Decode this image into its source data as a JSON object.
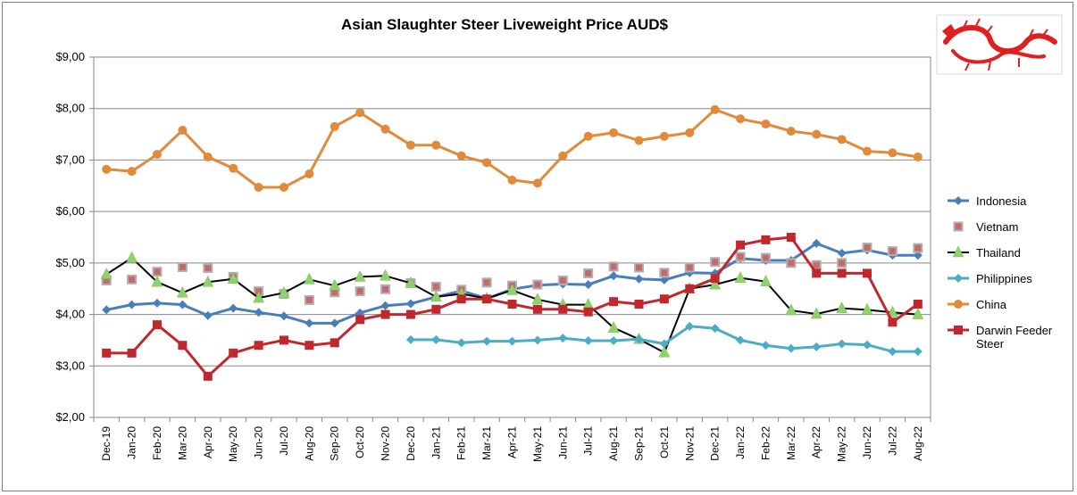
{
  "chart_data": {
    "type": "line",
    "title": "Asian Slaughter Steer Liveweight Price AUD$",
    "ylim": [
      2,
      9
    ],
    "yticks": [
      "$2,00",
      "$3,00",
      "$4,00",
      "$5,00",
      "$6,00",
      "$7,00",
      "$8,00",
      "$9,00"
    ],
    "grid": true,
    "legend_position": "right",
    "categories": [
      "Dec-19",
      "Jan-20",
      "Feb-20",
      "Mar-20",
      "Apr-20",
      "May-20",
      "Jun-20",
      "Jul-20",
      "Aug-20",
      "Sep-20",
      "Oct-20",
      "Nov-20",
      "Dec-20",
      "Jan-21",
      "Feb-21",
      "Mar-21",
      "Apr-21",
      "May-21",
      "Jun-21",
      "Jul-21",
      "Aug-21",
      "Sep-21",
      "Oct-21",
      "Nov-21",
      "Dec-21",
      "Jan-22",
      "Feb-22",
      "Mar-22",
      "Apr-22",
      "May-22",
      "Jun-22",
      "Jul-22",
      "Aug-22"
    ],
    "series": [
      {
        "name": "Indonesia",
        "color": "#4a7ebb",
        "marker": "diamond",
        "line": true,
        "values": [
          4.09,
          4.19,
          4.22,
          4.19,
          3.98,
          4.12,
          4.04,
          3.97,
          3.83,
          3.83,
          4.03,
          4.17,
          4.21,
          4.34,
          4.46,
          4.31,
          4.49,
          4.57,
          4.59,
          4.58,
          4.75,
          4.69,
          4.67,
          4.81,
          4.8,
          5.09,
          5.05,
          5.05,
          5.38,
          5.19,
          5.25,
          5.15,
          5.15
        ]
      },
      {
        "name": "Vietnam",
        "color": "#c0504d",
        "marker": "square-gray",
        "line": false,
        "values": [
          4.66,
          4.68,
          4.83,
          4.92,
          4.9,
          4.73,
          4.45,
          4.4,
          4.28,
          4.43,
          4.45,
          4.49,
          4.61,
          4.54,
          4.48,
          4.62,
          4.56,
          4.58,
          4.66,
          4.8,
          4.93,
          4.91,
          4.81,
          4.91,
          5.02,
          5.12,
          5.1,
          5.0,
          4.96,
          5.0,
          5.3,
          5.23,
          5.29
        ]
      },
      {
        "name": "Thailand",
        "color": "#000000",
        "marker": "triangle",
        "line": true,
        "values": [
          4.78,
          5.1,
          4.63,
          4.42,
          4.63,
          4.69,
          4.32,
          4.42,
          4.68,
          4.56,
          4.73,
          4.75,
          4.61,
          4.34,
          4.4,
          4.31,
          4.47,
          4.29,
          4.19,
          4.19,
          3.74,
          3.52,
          3.26,
          4.5,
          4.58,
          4.71,
          4.64,
          4.08,
          4.01,
          4.12,
          4.09,
          4.04,
          4.0
        ]
      },
      {
        "name": "Philippines",
        "color": "#4bacc6",
        "marker": "diamond",
        "line": true,
        "values": [
          null,
          null,
          null,
          null,
          null,
          null,
          null,
          null,
          null,
          null,
          null,
          null,
          3.51,
          3.51,
          3.45,
          3.48,
          3.48,
          3.5,
          3.54,
          3.49,
          3.49,
          3.52,
          3.43,
          3.77,
          3.73,
          3.5,
          3.4,
          3.34,
          3.37,
          3.43,
          3.41,
          3.28,
          3.28
        ]
      },
      {
        "name": "China",
        "color": "#e08a3a",
        "marker": "circle",
        "line": true,
        "values": [
          6.82,
          6.78,
          7.11,
          7.58,
          7.06,
          6.84,
          6.47,
          6.47,
          6.73,
          7.65,
          7.92,
          7.6,
          7.29,
          7.29,
          7.08,
          6.95,
          6.61,
          6.55,
          7.08,
          7.46,
          7.53,
          7.38,
          7.46,
          7.53,
          7.98,
          7.8,
          7.7,
          7.56,
          7.5,
          7.4,
          7.17,
          7.14,
          7.06
        ]
      },
      {
        "name": "Darwin Feeder Steer",
        "color": "#c0282d",
        "marker": "square",
        "line": true,
        "values": [
          3.25,
          3.25,
          3.8,
          3.4,
          2.8,
          3.25,
          3.4,
          3.5,
          3.4,
          3.45,
          3.9,
          4.0,
          4.0,
          4.1,
          4.3,
          4.3,
          4.2,
          4.1,
          4.1,
          4.05,
          4.25,
          4.2,
          4.3,
          4.5,
          4.7,
          5.35,
          5.45,
          5.5,
          4.8,
          4.8,
          4.8,
          3.85,
          4.2
        ]
      }
    ]
  }
}
